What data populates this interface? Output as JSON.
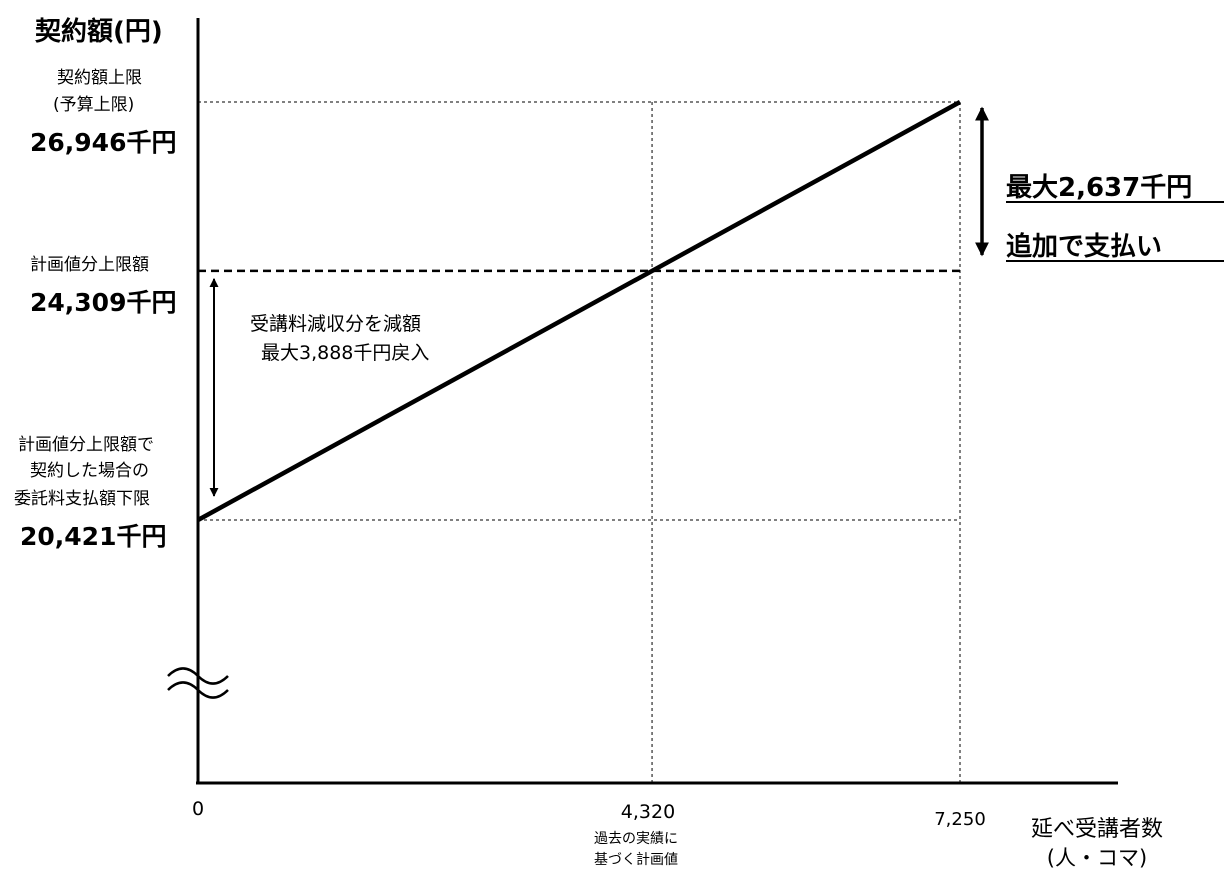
{
  "chart_data": {
    "type": "line",
    "ylabel": "契約額(円)",
    "xlabel_line1": "延べ受講者数",
    "xlabel_line2": "(人・コマ)",
    "x_ticks": [
      {
        "value": 0,
        "label": "0",
        "sub": []
      },
      {
        "value": 4320,
        "label": "4,320",
        "sub": [
          "過去の実績に",
          "基づく計画値"
        ]
      },
      {
        "value": 7250,
        "label": "7,250",
        "sub": []
      }
    ],
    "y_levels": [
      {
        "value": 26946,
        "label_lines": [
          "契約額上限",
          "(予算上限)"
        ],
        "value_label": "26,946千円"
      },
      {
        "value": 24309,
        "label_lines": [
          "計画値分上限額"
        ],
        "value_label": "24,309千円"
      },
      {
        "value": 20421,
        "label_lines": [
          "計画値分上限額で",
          "契約した場合の",
          "委託料支払額下限"
        ],
        "value_label": "20,421千円"
      }
    ],
    "series": [
      {
        "x": [
          0,
          7250
        ],
        "y": [
          20421,
          26946
        ]
      }
    ],
    "xlim": [
      0,
      7250
    ],
    "ylim_display": [
      16800,
      29300
    ],
    "axis_break": true,
    "annotations": {
      "reduction": [
        "受講料減収分を減額",
        "最大3,888千円戻入"
      ],
      "addition": [
        "最大2,637千円",
        "追加で支払い"
      ]
    },
    "colors": {
      "line": "#000000",
      "background": "#ffffff"
    }
  }
}
